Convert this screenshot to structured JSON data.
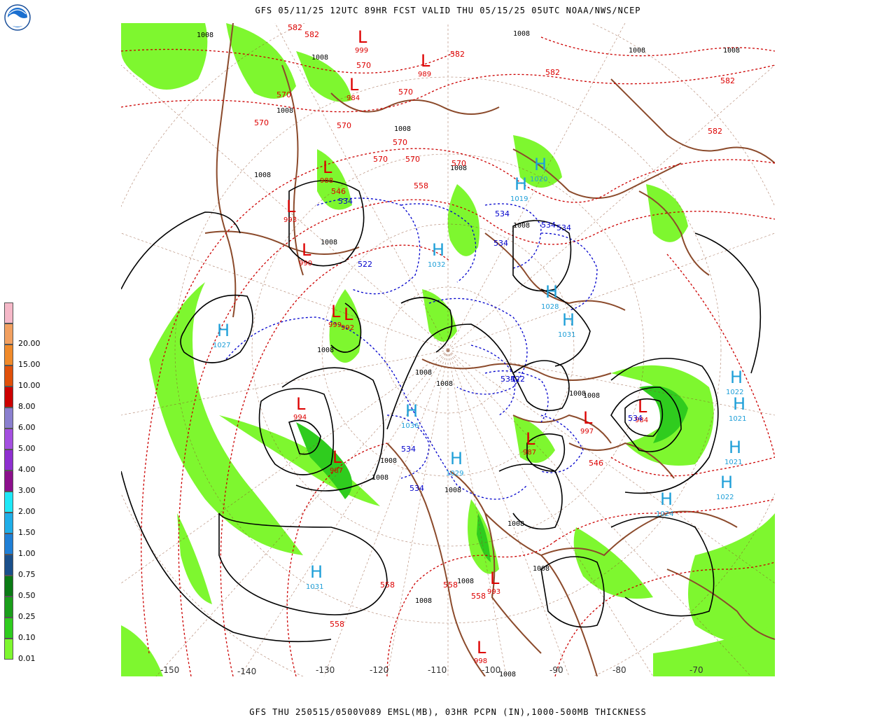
{
  "header": {
    "title": "GFS 05/11/25 12UTC 89HR FCST VALID THU 05/15/25 05UTC NOAA/NWS/NCEP"
  },
  "footer": {
    "text": "GFS THU 250515/0500V089 EMSL(MB), 03HR PCPN (IN),1000-500MB THICKNESS"
  },
  "logo": {
    "icon": "noaa-logo-icon"
  },
  "legend": {
    "labels": [
      "20.00",
      "15.00",
      "10.00",
      "8.00",
      "6.00",
      "5.00",
      "4.00",
      "3.00",
      "2.00",
      "1.50",
      "1.00",
      "0.75",
      "0.50",
      "0.25",
      "0.10",
      "0.01"
    ],
    "colors": [
      "#ffffff",
      "#7ef72f",
      "#2fcc1e",
      "#1a9e1a",
      "#0a7a14",
      "#1a4f8a",
      "#1f7fd6",
      "#1faee8",
      "#1ee8f7",
      "#8c0f8c",
      "#8e2fd0",
      "#a44fe0",
      "#8a7fcf",
      "#cc0000",
      "#e0500a",
      "#f08a2a",
      "#f2a060",
      "#f5b8c8"
    ]
  },
  "map": {
    "colors": {
      "isobar": "#000000",
      "thickness_warm": "#cc0000",
      "thickness_cold": "#0000cc",
      "coast": "#8b4a2b",
      "precip_light": "#7ef72f",
      "precip_mod": "#2fcc1e",
      "grid": "#8b4a2b"
    },
    "lows": [
      {
        "label": "L",
        "value": "999"
      },
      {
        "label": "L",
        "value": "989"
      },
      {
        "label": "L",
        "value": "984"
      },
      {
        "label": "L",
        "value": "988"
      },
      {
        "label": "L",
        "value": "993"
      },
      {
        "label": "L",
        "value": "990"
      },
      {
        "label": "L",
        "value": "999"
      },
      {
        "label": "L",
        "value": "992"
      },
      {
        "label": "L",
        "value": "994"
      },
      {
        "label": "L",
        "value": "987"
      },
      {
        "label": "L",
        "value": "984"
      },
      {
        "label": "L",
        "value": "997"
      },
      {
        "label": "L",
        "value": "987"
      },
      {
        "label": "L",
        "value": "993"
      },
      {
        "label": "L",
        "value": "998"
      }
    ],
    "highs": [
      {
        "label": "H",
        "value": "1020"
      },
      {
        "label": "H",
        "value": "1019"
      },
      {
        "label": "H",
        "value": "1027"
      },
      {
        "label": "H",
        "value": "1028"
      },
      {
        "label": "H",
        "value": "1031"
      },
      {
        "label": "H",
        "value": "1032"
      },
      {
        "label": "H",
        "value": "1022"
      },
      {
        "label": "H",
        "value": "1021"
      },
      {
        "label": "H",
        "value": "1021"
      },
      {
        "label": "H",
        "value": "1022"
      },
      {
        "label": "H",
        "value": "1024"
      },
      {
        "label": "H",
        "value": "1036"
      },
      {
        "label": "H",
        "value": "1031"
      },
      {
        "label": "H",
        "value": "1029"
      }
    ],
    "isobar_labels": [
      "1008",
      "1008",
      "1008",
      "1008",
      "1008",
      "1008",
      "1008",
      "1008",
      "1008",
      "1008",
      "1008",
      "1008",
      "1008",
      "1008",
      "1008",
      "1008",
      "1008",
      "1008",
      "1008",
      "1008",
      "1008",
      "1008",
      "1008",
      "1008"
    ],
    "thickness_labels_warm": [
      "582",
      "582",
      "570",
      "570",
      "570",
      "570",
      "570",
      "570",
      "570",
      "570",
      "558",
      "546",
      "582",
      "582",
      "582",
      "582",
      "546",
      "558",
      "558",
      "558",
      "558",
      "570"
    ],
    "thickness_labels_cold": [
      "534",
      "534",
      "534",
      "522",
      "534",
      "534",
      "534",
      "534",
      "522",
      "534",
      "534"
    ],
    "lon_labels": [
      "-150",
      "-140",
      "-130",
      "-120",
      "-110",
      "-100",
      "-90",
      "-80",
      "-70"
    ]
  }
}
